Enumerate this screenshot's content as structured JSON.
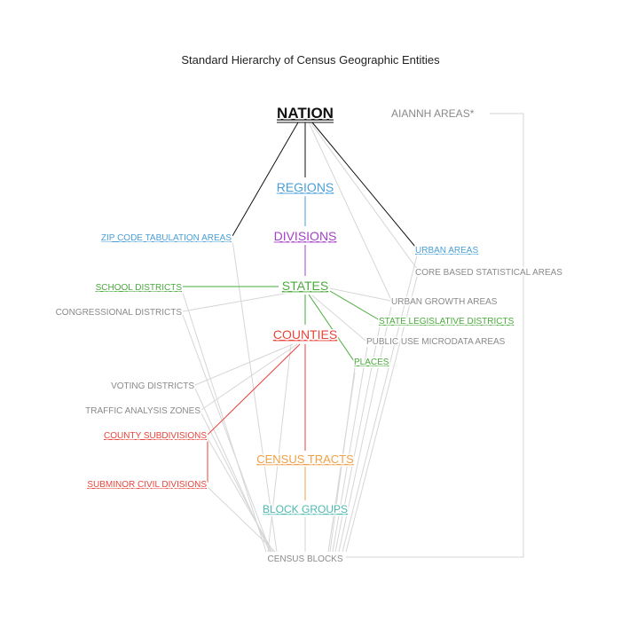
{
  "title": "Standard Hierarchy of Census Geographic Entities",
  "colors": {
    "nation": "#111111",
    "regions": "#4a9fd8",
    "divisions": "#a640c8",
    "states": "#4aaa3c",
    "counties": "#e8453c",
    "tracts": "#f0a048",
    "block_groups": "#4ab8b0",
    "gray": "#8a8a8a",
    "gray_line": "#d6d6d6",
    "zcta": "#4a9fd8",
    "urban_areas": "#4a9fd8"
  },
  "nodes": {
    "nation": "NATION",
    "regions": "REGIONS",
    "divisions": "DIVISIONS",
    "states": "STATES",
    "counties": "COUNTIES",
    "census_tracts": "CENSUS TRACTS",
    "block_groups": "BLOCK GROUPS",
    "census_blocks": "CENSUS BLOCKS",
    "aiannh_areas": "AIANNH AREAS*",
    "zcta": "ZIP CODE TABULATION AREAS",
    "urban_areas": "URBAN AREAS",
    "cbsa": "CORE BASED STATISTICAL AREAS",
    "school_districts": "SCHOOL DISTRICTS",
    "congressional_districts": "CONGRESSIONAL DISTRICTS",
    "urban_growth_areas": "URBAN GROWTH AREAS",
    "state_legislative_districts": "STATE LEGISLATIVE DISTRICTS",
    "puma": "PUBLIC USE MICRODATA AREAS",
    "places": "PLACES",
    "voting_districts": "VOTING DISTRICTS",
    "traffic_analysis_zones": "TRAFFIC ANALYSIS ZONES",
    "county_subdivisions": "COUNTY SUBDIVISIONS",
    "subminor_civil_divisions": "SUBMINOR CIVIL DIVISIONS"
  }
}
